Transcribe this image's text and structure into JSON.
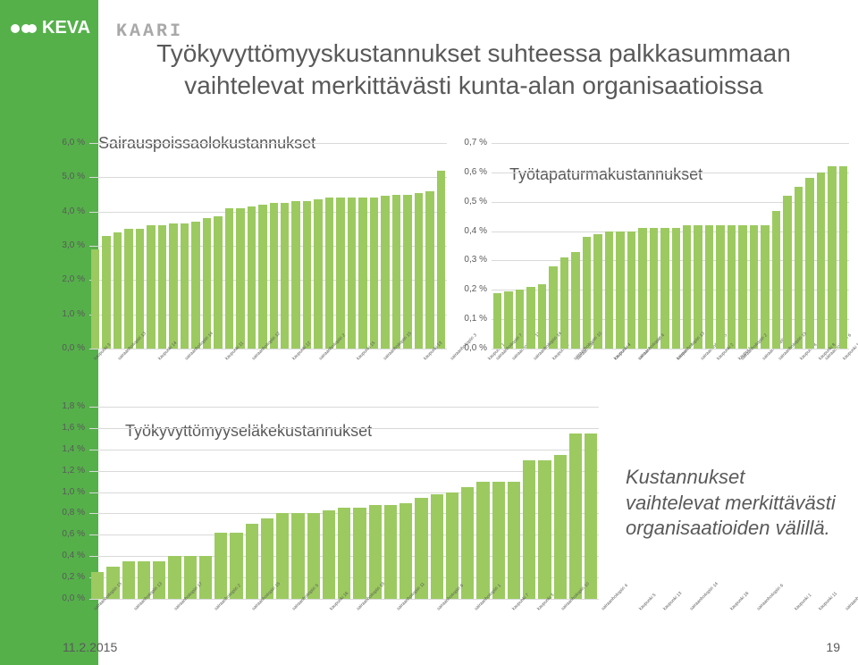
{
  "logo": {
    "text": "KEVA"
  },
  "kaari": "KAARI",
  "main_title": "Työkyvyttömyyskustannukset suhteessa palkkasummaan vaihtelevat merkittävästi kunta-alan organisaatioissa",
  "chart1": {
    "type": "bar",
    "title": "Sairauspoissaolokustannukset",
    "ylim": [
      0,
      6.0
    ],
    "ytick_step": 1.0,
    "ytick_suffix": " %",
    "bar_color": "#9cca60",
    "grid_color": "#d9d9d9",
    "background_color": "#ffffff",
    "title_fontsize": 18,
    "label_fontsize": 10,
    "x_label_fontsize": 5,
    "categories": [
      "kaupunki 3",
      "sairaanhoitopiiri 13",
      "kaupunki 14",
      "sairaanhoitopiiri 14",
      "kaupunki 11",
      "sairaanhoitopiiri 12",
      "kaupunki 12",
      "sairaanhoitopiiri 2",
      "kaupunki 15",
      "sairaanhoitopiiri 15",
      "kaupunki 13",
      "sairaanhoitopiiri 3",
      "kaupunki 1",
      "sairaanhoitopiiri 11",
      "kaupunki 2",
      "sairaanhoitopiiri 7",
      "kaupunki 6",
      "sairaanhoitopiiri 1",
      "kaupunki 7",
      "sairaanhoitopiiri 5",
      "kaupunki 4",
      "sairaanhoitopiiri 8",
      "kaupunki 8",
      "sairaanhoitopiiri 6",
      "kaupunki 5",
      "sairaanhoitopiiri 12",
      "kaupunki 16",
      "sairaanhoitopiiri 9",
      "kaupunki 9",
      "sairaanhoitopiiri 4",
      "kaupunki 10",
      "sairaanhoitopiiri 16"
    ],
    "values": [
      2.9,
      3.3,
      3.4,
      3.5,
      3.5,
      3.6,
      3.6,
      3.65,
      3.65,
      3.7,
      3.8,
      3.85,
      4.1,
      4.1,
      4.15,
      4.2,
      4.25,
      4.25,
      4.3,
      4.3,
      4.35,
      4.4,
      4.4,
      4.4,
      4.4,
      4.4,
      4.45,
      4.5,
      4.5,
      4.55,
      4.6,
      5.2
    ]
  },
  "chart2": {
    "type": "bar",
    "title": "Työtapaturmakustannukset",
    "ylim": [
      0,
      0.7
    ],
    "ytick_step": 0.1,
    "ytick_suffix": " %",
    "bar_color": "#9cca60",
    "grid_color": "#d9d9d9",
    "background_color": "#ffffff",
    "title_fontsize": 18,
    "label_fontsize": 10,
    "x_label_fontsize": 5,
    "categories": [
      "sairaanhoitopiiri 7",
      "sairaanhoitopiiri 14",
      "sairaanhoitopiiri 10",
      "kaupunki 4",
      "sairaanhoitopiiri 4",
      "sairaanhoitopiiri 13",
      "kaupunki 2",
      "sairaanhoitopiiri 2",
      "sairaanhoitopiiri 15",
      "kaupunki 8",
      "kaupunki 15",
      "sairaanhoitopiiri 9",
      "sairaanhoitopiiri 5",
      "sairaanhoitopiiri 6",
      "kaupunki 1",
      "sairaanhoitopiiri 11",
      "kaupunki 9",
      "sairaanhoitopiiri 1",
      "sairaanhoitopiiri 8",
      "kaupunki 12",
      "sairaanhoitopiiri 12",
      "kaupunki 11",
      "kaupunki 4",
      "sairaanhoitopiiri 3",
      "kaupunki 10",
      "kaupunki 7",
      "sairaanhoitopiiri 16",
      "kaupunki 3",
      "kaupunki 14",
      "kaupunki 5",
      "kaupunki 16",
      "sairaanhoitopiiri 17"
    ],
    "values": [
      0.19,
      0.195,
      0.2,
      0.21,
      0.22,
      0.28,
      0.31,
      0.33,
      0.38,
      0.39,
      0.4,
      0.4,
      0.4,
      0.41,
      0.41,
      0.41,
      0.41,
      0.42,
      0.42,
      0.42,
      0.42,
      0.42,
      0.42,
      0.42,
      0.42,
      0.47,
      0.52,
      0.55,
      0.58,
      0.6,
      0.62,
      0.62
    ]
  },
  "chart3": {
    "type": "bar",
    "title": "Työkyvyttömyyseläkekustannukset",
    "ylim": [
      0,
      1.8
    ],
    "ytick_step": 0.2,
    "ytick_suffix": " %",
    "bar_color": "#9cca60",
    "grid_color": "#d9d9d9",
    "background_color": "#ffffff",
    "title_fontsize": 18,
    "label_fontsize": 10,
    "x_label_fontsize": 5,
    "categories": [
      "sairaanhoitopiiri 15",
      "sairaanhoitopiiri 13",
      "sairaanhoitopiiri 17",
      "sairaanhoitopiiri 2",
      "sairaanhoitopiiri 15",
      "sairaanhoitopiiri 5",
      "kaupunki 16",
      "sairaanhoitopiiri 18",
      "sairaanhoitopiiri 11",
      "sairaanhoitopiiri 6",
      "sairaanhoitopiiri 1",
      "kaupunki 7",
      "kaupunki 3",
      "sairaanhoitopiiri 10",
      "sairaanhoitopiiri 4",
      "kaupunki 5",
      "kaupunki 13",
      "sairaanhoitopiiri 14",
      "kaupunki 16",
      "sairaanhoitopiiri 6",
      "kaupunki 1",
      "kaupunki 11",
      "sairaanhoitopiiri 5",
      "kaupunki 9",
      "kaupunki 8",
      "kaupunki 10",
      "sairaanhoitopiiri 8",
      "kaupunki 6",
      "kaupunki 2",
      "kaupunki 7",
      "sairaanhoitopiiri 12",
      "kaupunki 12",
      "kaupunki 4"
    ],
    "values": [
      0.25,
      0.3,
      0.35,
      0.35,
      0.35,
      0.4,
      0.4,
      0.4,
      0.62,
      0.62,
      0.7,
      0.75,
      0.8,
      0.8,
      0.8,
      0.83,
      0.85,
      0.85,
      0.88,
      0.88,
      0.9,
      0.95,
      0.98,
      1.0,
      1.05,
      1.1,
      1.1,
      1.1,
      1.3,
      1.3,
      1.35,
      1.55,
      1.55
    ]
  },
  "summary": "Kustannukset vaihtelevat merkittävästi organisaatioiden välillä.",
  "footer": {
    "date": "11.2.2015",
    "page": "19"
  }
}
